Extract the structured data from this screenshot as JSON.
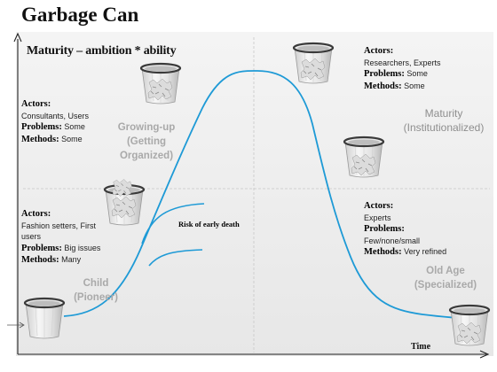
{
  "title": "Garbage Can",
  "subtitle": "Maturity – ambition * ability",
  "x_axis_label": "Time",
  "note": "Risk of early death",
  "stages": {
    "child": [
      "Child",
      "(Pioneer)"
    ],
    "growing": [
      "Growing-up",
      "(Getting",
      "Organized)"
    ],
    "maturity": [
      "Maturity",
      "(Institutionalized)"
    ],
    "old_age": [
      "Old Age",
      "(Specialized)"
    ]
  },
  "blocks": {
    "growing": {
      "actors_label": "Actors:",
      "actors": "Consultants, Users",
      "problems_label": "Problems:",
      "problems": "Some",
      "methods_label": "Methods:",
      "methods": "Some"
    },
    "child": {
      "actors_label": "Actors:",
      "actors": "Fashion setters, First users",
      "problems_label": "Problems:",
      "problems": "Big issues",
      "methods_label": "Methods:",
      "methods": "Many"
    },
    "maturity": {
      "actors_label": "Actors:",
      "actors": "Researchers, Experts",
      "problems_label": "Problems:",
      "problems": "Some",
      "methods_label": "Methods:",
      "methods": "Some"
    },
    "old_age": {
      "actors_label": "Actors:",
      "actors": "Experts",
      "problems_label": "Problems:",
      "problems": "Few/none/small",
      "methods_label": "Methods:",
      "methods": "Very refined"
    }
  },
  "colors": {
    "curve": "#1e9ad6",
    "axis": "#222222",
    "divider": "#c8c8c8",
    "stage_text": "#a9a9a9"
  }
}
